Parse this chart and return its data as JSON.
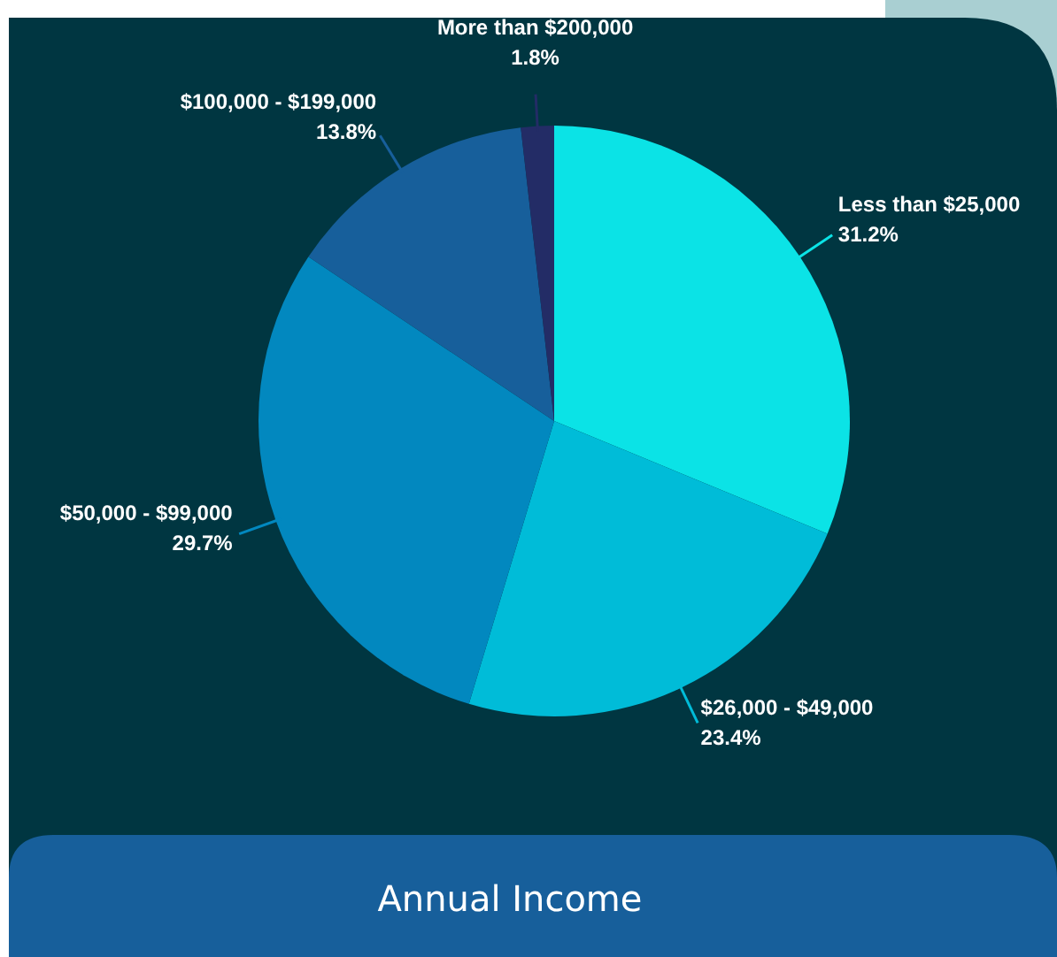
{
  "chart_data": {
    "type": "pie",
    "title": "Annual Income",
    "categories": [
      "Less than $25,000",
      "$26,000 - $49,000",
      "$50,000 - $99,000",
      "$100,000 - $199,000",
      "More than $200,000"
    ],
    "values": [
      31.2,
      23.4,
      29.7,
      13.8,
      1.8
    ],
    "value_labels": [
      "31.2%",
      "23.4%",
      "29.7%",
      "13.8%",
      "1.8%"
    ],
    "colors": [
      "#0be3e6",
      "#00bcd8",
      "#0288bf",
      "#175f9b",
      "#232c66"
    ],
    "legend": false
  }
}
